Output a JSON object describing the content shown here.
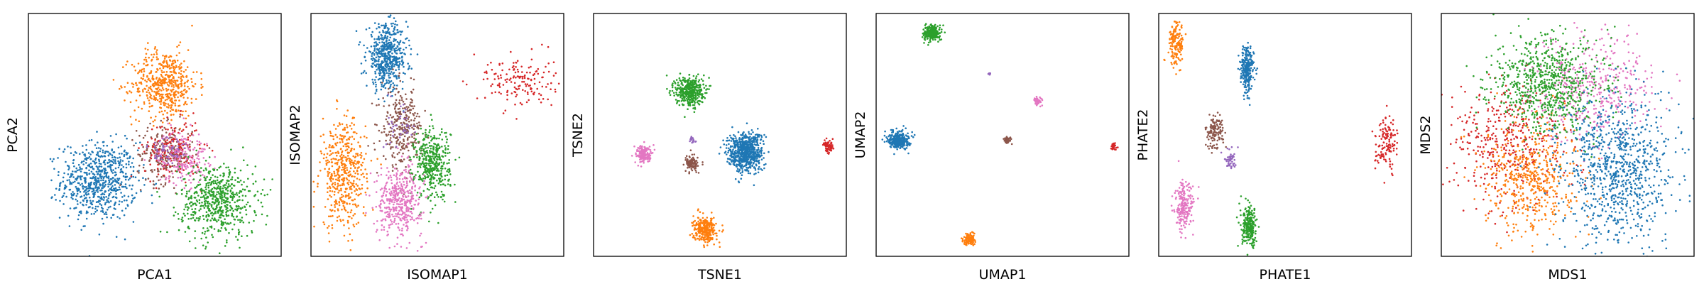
{
  "palette": {
    "blue": "#1f77b4",
    "orange": "#ff7f0e",
    "green": "#2ca02c",
    "red": "#d62728",
    "purple": "#9467bd",
    "brown": "#8c564b",
    "pink": "#e377c2"
  },
  "chart_data": [
    {
      "type": "scatter",
      "xlabel": "PCA1",
      "ylabel": "PCA2",
      "xlim": [
        0,
        1
      ],
      "ylim": [
        0,
        1
      ],
      "grid": false,
      "ticks": false,
      "clusters": [
        {
          "color": "blue",
          "cx": 0.28,
          "cy": 0.31,
          "sx": 0.075,
          "sy": 0.08,
          "n": 700
        },
        {
          "color": "orange",
          "cx": 0.54,
          "cy": 0.71,
          "sx": 0.065,
          "sy": 0.07,
          "n": 520
        },
        {
          "color": "brown",
          "cx": 0.54,
          "cy": 0.42,
          "sx": 0.055,
          "sy": 0.06,
          "n": 220
        },
        {
          "color": "red",
          "cx": 0.57,
          "cy": 0.44,
          "sx": 0.055,
          "sy": 0.06,
          "n": 180
        },
        {
          "color": "pink",
          "cx": 0.61,
          "cy": 0.41,
          "sx": 0.05,
          "sy": 0.055,
          "n": 200
        },
        {
          "color": "purple",
          "cx": 0.55,
          "cy": 0.43,
          "sx": 0.04,
          "sy": 0.04,
          "n": 60
        },
        {
          "color": "green",
          "cx": 0.75,
          "cy": 0.23,
          "sx": 0.075,
          "sy": 0.075,
          "n": 600
        }
      ]
    },
    {
      "type": "scatter",
      "xlabel": "ISOMAP1",
      "ylabel": "ISOMAP2",
      "xlim": [
        0,
        1
      ],
      "ylim": [
        0,
        1
      ],
      "grid": false,
      "ticks": false,
      "clusters": [
        {
          "color": "blue",
          "cx": 0.3,
          "cy": 0.82,
          "sx": 0.04,
          "sy": 0.065,
          "n": 550
        },
        {
          "color": "brown",
          "cx": 0.36,
          "cy": 0.53,
          "sx": 0.04,
          "sy": 0.08,
          "n": 300
        },
        {
          "color": "green",
          "cx": 0.48,
          "cy": 0.38,
          "sx": 0.035,
          "sy": 0.075,
          "n": 420
        },
        {
          "color": "orange",
          "cx": 0.13,
          "cy": 0.34,
          "sx": 0.045,
          "sy": 0.11,
          "n": 480
        },
        {
          "color": "pink",
          "cx": 0.35,
          "cy": 0.23,
          "sx": 0.045,
          "sy": 0.07,
          "n": 420
        },
        {
          "color": "red",
          "cx": 0.82,
          "cy": 0.72,
          "sx": 0.07,
          "sy": 0.055,
          "n": 160
        },
        {
          "color": "purple",
          "cx": 0.36,
          "cy": 0.55,
          "sx": 0.03,
          "sy": 0.05,
          "n": 40
        }
      ]
    },
    {
      "type": "scatter",
      "xlabel": "TSNE1",
      "ylabel": "TSNE2",
      "xlim": [
        0,
        1
      ],
      "ylim": [
        0,
        1
      ],
      "grid": false,
      "ticks": false,
      "clusters": [
        {
          "color": "green",
          "cx": 0.38,
          "cy": 0.68,
          "sx": 0.028,
          "sy": 0.03,
          "n": 420
        },
        {
          "color": "blue",
          "cx": 0.6,
          "cy": 0.43,
          "sx": 0.035,
          "sy": 0.04,
          "n": 700
        },
        {
          "color": "pink",
          "cx": 0.2,
          "cy": 0.42,
          "sx": 0.016,
          "sy": 0.018,
          "n": 160
        },
        {
          "color": "brown",
          "cx": 0.39,
          "cy": 0.38,
          "sx": 0.013,
          "sy": 0.015,
          "n": 110
        },
        {
          "color": "purple",
          "cx": 0.39,
          "cy": 0.48,
          "sx": 0.006,
          "sy": 0.008,
          "n": 20
        },
        {
          "color": "orange",
          "cx": 0.44,
          "cy": 0.11,
          "sx": 0.022,
          "sy": 0.025,
          "n": 300
        },
        {
          "color": "red",
          "cx": 0.93,
          "cy": 0.45,
          "sx": 0.01,
          "sy": 0.012,
          "n": 70
        }
      ]
    },
    {
      "type": "scatter",
      "xlabel": "UMAP1",
      "ylabel": "UMAP2",
      "xlim": [
        0,
        1
      ],
      "ylim": [
        0,
        1
      ],
      "grid": false,
      "ticks": false,
      "clusters": [
        {
          "color": "green",
          "cx": 0.22,
          "cy": 0.92,
          "sx": 0.016,
          "sy": 0.016,
          "n": 260
        },
        {
          "color": "blue",
          "cx": 0.09,
          "cy": 0.48,
          "sx": 0.02,
          "sy": 0.018,
          "n": 320
        },
        {
          "color": "orange",
          "cx": 0.37,
          "cy": 0.07,
          "sx": 0.012,
          "sy": 0.011,
          "n": 130
        },
        {
          "color": "pink",
          "cx": 0.64,
          "cy": 0.64,
          "sx": 0.008,
          "sy": 0.008,
          "n": 60
        },
        {
          "color": "brown",
          "cx": 0.52,
          "cy": 0.48,
          "sx": 0.007,
          "sy": 0.007,
          "n": 40
        },
        {
          "color": "purple",
          "cx": 0.45,
          "cy": 0.75,
          "sx": 0.003,
          "sy": 0.003,
          "n": 8
        },
        {
          "color": "red",
          "cx": 0.94,
          "cy": 0.45,
          "sx": 0.006,
          "sy": 0.007,
          "n": 30
        }
      ]
    },
    {
      "type": "scatter",
      "xlabel": "PHATE1",
      "ylabel": "PHATE2",
      "xlim": [
        0,
        1
      ],
      "ylim": [
        0,
        1
      ],
      "grid": false,
      "ticks": false,
      "clusters": [
        {
          "color": "orange",
          "cx": 0.07,
          "cy": 0.88,
          "sx": 0.015,
          "sy": 0.045,
          "n": 160
        },
        {
          "color": "blue",
          "cx": 0.35,
          "cy": 0.77,
          "sx": 0.013,
          "sy": 0.05,
          "n": 260
        },
        {
          "color": "brown",
          "cx": 0.22,
          "cy": 0.51,
          "sx": 0.018,
          "sy": 0.035,
          "n": 130
        },
        {
          "color": "purple",
          "cx": 0.28,
          "cy": 0.4,
          "sx": 0.012,
          "sy": 0.02,
          "n": 50
        },
        {
          "color": "pink",
          "cx": 0.1,
          "cy": 0.2,
          "sx": 0.018,
          "sy": 0.05,
          "n": 200
        },
        {
          "color": "green",
          "cx": 0.36,
          "cy": 0.12,
          "sx": 0.016,
          "sy": 0.04,
          "n": 240
        },
        {
          "color": "red",
          "cx": 0.9,
          "cy": 0.47,
          "sx": 0.022,
          "sy": 0.055,
          "n": 130
        }
      ]
    },
    {
      "type": "scatter",
      "xlabel": "MDS1",
      "ylabel": "MDS2",
      "xlim": [
        0,
        1
      ],
      "ylim": [
        0,
        1
      ],
      "grid": false,
      "ticks": false,
      "clusters": [
        {
          "color": "pink",
          "cx": 0.6,
          "cy": 0.7,
          "sx": 0.12,
          "sy": 0.11,
          "n": 420
        },
        {
          "color": "red",
          "cx": 0.26,
          "cy": 0.47,
          "sx": 0.12,
          "sy": 0.12,
          "n": 420
        },
        {
          "color": "orange",
          "cx": 0.36,
          "cy": 0.32,
          "sx": 0.09,
          "sy": 0.12,
          "n": 520
        },
        {
          "color": "green",
          "cx": 0.42,
          "cy": 0.71,
          "sx": 0.11,
          "sy": 0.1,
          "n": 750
        },
        {
          "color": "blue",
          "cx": 0.7,
          "cy": 0.36,
          "sx": 0.11,
          "sy": 0.15,
          "n": 900
        }
      ]
    }
  ]
}
